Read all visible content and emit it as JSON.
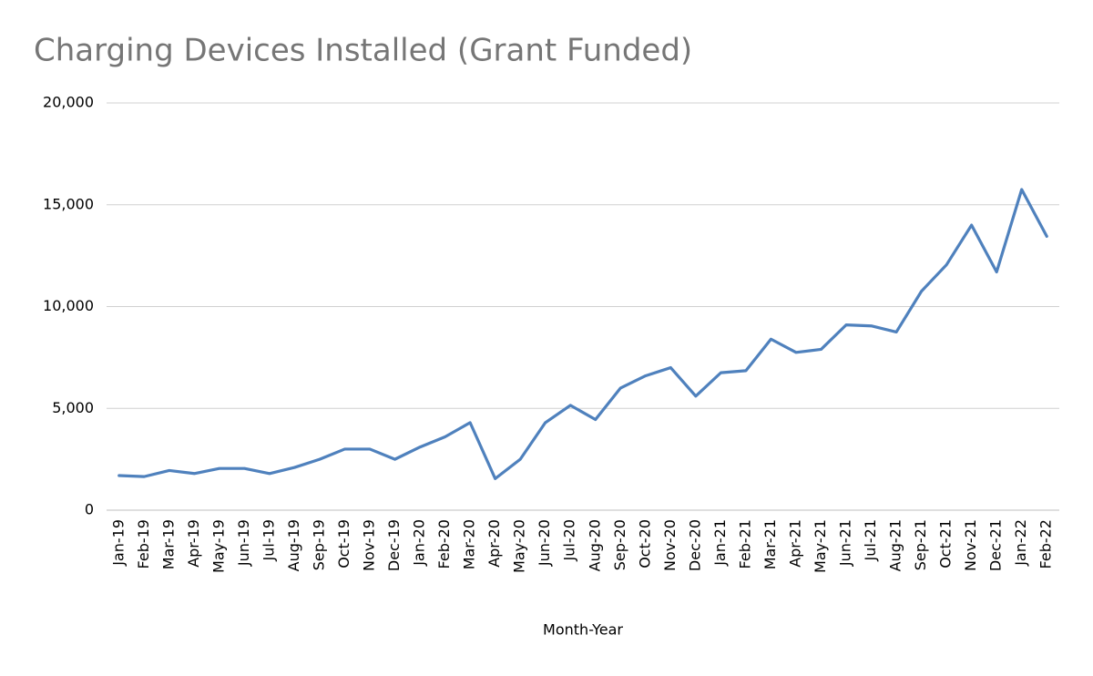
{
  "chart_data": {
    "type": "line",
    "title": "Charging Devices Installed (Grant Funded)",
    "x_label": "Month-Year",
    "categories": [
      "Jan-19",
      "Feb-19",
      "Mar-19",
      "Apr-19",
      "May-19",
      "Jun-19",
      "Jul-19",
      "Aug-19",
      "Sep-19",
      "Oct-19",
      "Nov-19",
      "Dec-19",
      "Jan-20",
      "Feb-20",
      "Mar-20",
      "Apr-20",
      "May-20",
      "Jun-20",
      "Jul-20",
      "Aug-20",
      "Sep-20",
      "Oct-20",
      "Nov-20",
      "Dec-20",
      "Jan-21",
      "Feb-21",
      "Mar-21",
      "Apr-21",
      "May-21",
      "Jun-21",
      "Jul-21",
      "Aug-21",
      "Sep-21",
      "Oct-21",
      "Nov-21",
      "Dec-21",
      "Jan-22",
      "Feb-22"
    ],
    "values": [
      1700,
      1650,
      1950,
      1800,
      2050,
      2050,
      1800,
      2100,
      2500,
      3000,
      3000,
      2500,
      3100,
      3600,
      4300,
      1550,
      2500,
      4300,
      5150,
      4450,
      6000,
      6600,
      7000,
      5600,
      6750,
      6850,
      8400,
      7750,
      7900,
      9100,
      9050,
      8750,
      10750,
      12050,
      14000,
      11700,
      15750,
      13450
    ],
    "color": "#4f81bd",
    "ylim": [
      0,
      20000
    ],
    "yticks": [
      0,
      {
        "value": 5000,
        "label": "5,000"
      },
      {
        "value": 10000,
        "label": "10,000"
      },
      {
        "value": 15000,
        "label": "15,000"
      },
      {
        "value": 20000,
        "label": "20,000"
      }
    ],
    "grid": true
  }
}
